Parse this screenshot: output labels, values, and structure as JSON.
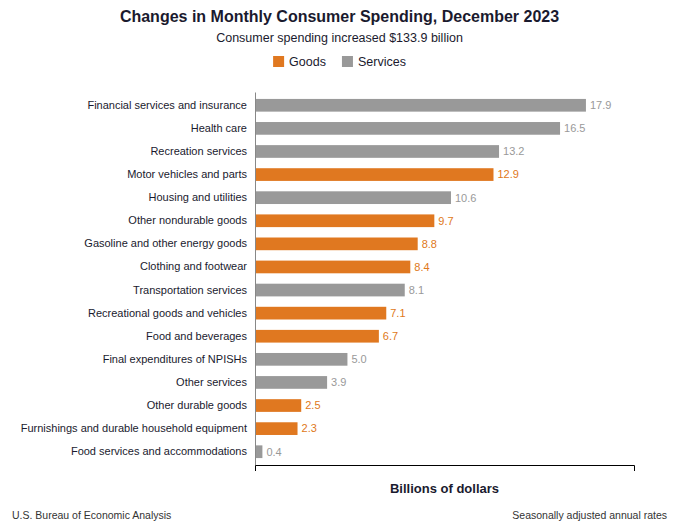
{
  "chart_data": {
    "type": "bar",
    "orientation": "horizontal",
    "stacked": true,
    "title": "Changes in Monthly Consumer Spending, December 2023",
    "subtitle": "Consumer spending increased $133.9 billion",
    "xlabel": "Billions of dollars",
    "annotations": [
      "U.S. Bureau of Economic Analysis",
      "Seasonally adjusted annual rates"
    ],
    "categories": [
      "Financial services and insurance",
      "Health care",
      "Recreation services",
      "Motor vehicles and parts",
      "Housing and utilities",
      "Other nondurable goods",
      "Gasoline and other energy goods",
      "Clothing and footwear",
      "Transportation services",
      "Recreational goods and vehicles",
      "Food and beverages",
      "Final expenditures of NPISHs",
      "Other services",
      "Other durable goods",
      "Furnishings and durable household equipment",
      "Food services and accommodations"
    ],
    "series": [
      {
        "name": "Goods",
        "color": "#E07820",
        "values": [
          null,
          null,
          null,
          12.9,
          null,
          9.7,
          8.8,
          8.4,
          null,
          7.1,
          6.7,
          null,
          null,
          2.5,
          2.3,
          null
        ],
        "value_labels": [
          null,
          null,
          null,
          "12.9",
          null,
          "9.7",
          "8.8",
          "8.4",
          null,
          "7.1",
          "6.7",
          null,
          null,
          "2.5",
          "2.3",
          null
        ]
      },
      {
        "name": "Services",
        "color": "#999999",
        "values": [
          17.9,
          16.5,
          13.2,
          null,
          10.6,
          null,
          null,
          null,
          8.1,
          null,
          null,
          5.0,
          3.9,
          null,
          null,
          0.4
        ],
        "value_labels": [
          "17.9",
          "16.5",
          "13.2",
          null,
          "10.6",
          null,
          null,
          null,
          "8.1",
          null,
          null,
          "5.0",
          "3.9",
          null,
          null,
          "0.4"
        ]
      }
    ],
    "xlim": [
      0,
      20.5
    ],
    "data_labels": true,
    "tick_labels": "y",
    "legend": "top"
  }
}
